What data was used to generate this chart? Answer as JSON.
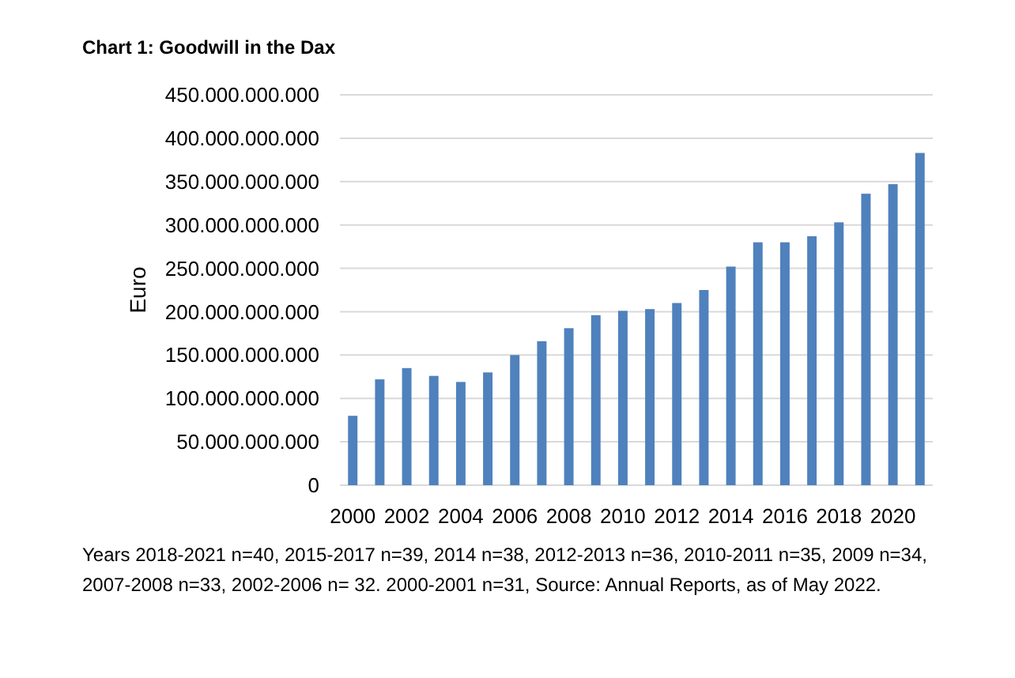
{
  "chart_data": {
    "type": "bar",
    "title": "Chart 1: Goodwill in the Dax",
    "ylabel": "Euro",
    "categories": [
      "2000",
      null,
      "2002",
      null,
      "2004",
      null,
      "2006",
      null,
      "2008",
      null,
      "2010",
      null,
      "2012",
      null,
      "2014",
      null,
      "2016",
      null,
      "2018",
      null,
      "2020",
      null
    ],
    "values": [
      80000000000,
      122000000000,
      135000000000,
      126000000000,
      119000000000,
      130000000000,
      150000000000,
      166000000000,
      181000000000,
      196000000000,
      201000000000,
      203000000000,
      210000000000,
      225000000000,
      252000000000,
      280000000000,
      280000000000,
      287000000000,
      303000000000,
      336000000000,
      347000000000,
      383000000000
    ],
    "color": "#4f81bd",
    "ylim": [
      0,
      450000000000
    ],
    "yticks": [
      0,
      {
        "value": 50000000000,
        "label": "50.000.000.000"
      },
      {
        "value": 100000000000,
        "label": "100.000.000.000"
      },
      {
        "value": 150000000000,
        "label": "150.000.000.000"
      },
      {
        "value": 200000000000,
        "label": "200.000.000.000"
      },
      {
        "value": 250000000000,
        "label": "250.000.000.000"
      },
      {
        "value": 300000000000,
        "label": "300.000.000.000"
      },
      {
        "value": 350000000000,
        "label": "350.000.000.000"
      },
      {
        "value": 400000000000,
        "label": "400.000.000.000"
      },
      {
        "value": 450000000000,
        "label": "450.000.000.000"
      }
    ],
    "grid": "y",
    "annotations": [
      "Years 2018-2021 n=40, 2015-2017 n=39, 2014 n=38, 2012-2013 n=36, 2010-2011 n=35, 2009 n=34, 2007-2008 n=33, 2002-2006 n= 32. 2000-2001 n=31, Source: Annual Reports, as of May 2022."
    ]
  }
}
